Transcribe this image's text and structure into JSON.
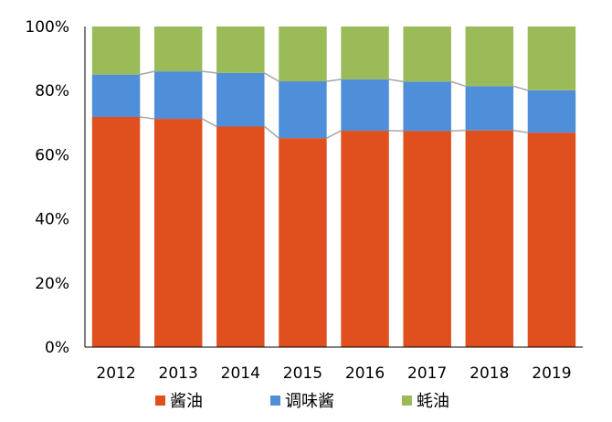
{
  "chart_data": {
    "type": "bar",
    "stacked": true,
    "title": "",
    "xlabel": "",
    "ylabel": "",
    "ylim": [
      0,
      100
    ],
    "y_ticks": [
      "0%",
      "20%",
      "40%",
      "60%",
      "80%",
      "100%"
    ],
    "categories": [
      "2012",
      "2013",
      "2014",
      "2015",
      "2016",
      "2017",
      "2018",
      "2019"
    ],
    "series": [
      {
        "name": "酱油",
        "color": "#e0501f",
        "values": [
          71.8,
          71.2,
          68.8,
          65.2,
          67.5,
          67.4,
          67.6,
          66.9
        ]
      },
      {
        "name": "调味酱",
        "color": "#4f8ed8",
        "values": [
          13.2,
          14.8,
          16.7,
          17.7,
          16.0,
          15.4,
          13.8,
          13.2
        ]
      },
      {
        "name": "蚝油",
        "color": "#9bbb59",
        "values": [
          15.0,
          14.0,
          14.5,
          17.1,
          16.5,
          17.2,
          18.6,
          19.9
        ]
      }
    ],
    "connector_lines": true,
    "legend_position": "bottom",
    "grid": false
  }
}
